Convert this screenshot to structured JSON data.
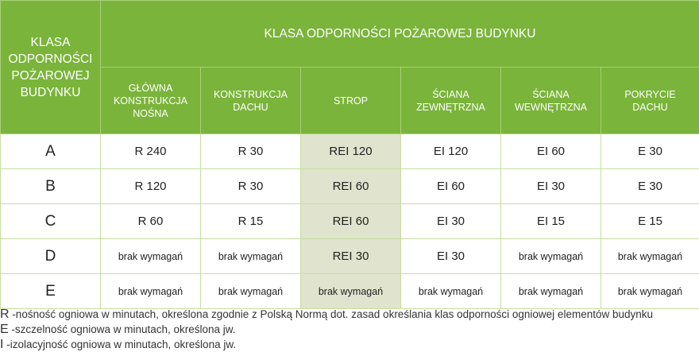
{
  "table": {
    "corner_header": [
      "KLASA",
      "ODPORNOŚCI",
      "POŻAROWEJ",
      "BUDYNKU"
    ],
    "group_header": "KLASA ODPORNOŚCI POŻAROWEJ BUDYNKU",
    "columns": [
      [
        "GŁÓWNA",
        "KONSTRUKCJA",
        "NOŚNA"
      ],
      [
        "KONSTRUKCJA",
        "DACHU"
      ],
      [
        "STROP"
      ],
      [
        "ŚCIANA",
        "ZEWNĘTRZNA"
      ],
      [
        "ŚCIANA",
        "WEWNĘTRZNA"
      ],
      [
        "POKRYCIE",
        "DACHU"
      ]
    ],
    "rows": [
      {
        "class": "A",
        "cells": [
          "R 240",
          "R 30",
          "REI 120",
          "EI 120",
          "EI 60",
          "E 30"
        ]
      },
      {
        "class": "B",
        "cells": [
          "R 120",
          "R 30",
          "REI 60",
          "EI 60",
          "EI 30",
          "E 30"
        ]
      },
      {
        "class": "C",
        "cells": [
          "R 60",
          "R 15",
          "REI 60",
          "EI 30",
          "EI 15",
          "E 15"
        ]
      },
      {
        "class": "D",
        "cells": [
          "brak wymagań",
          "brak wymagań",
          "REI 30",
          "EI 30",
          "brak wymagań",
          "brak wymagań"
        ]
      },
      {
        "class": "E",
        "cells": [
          "brak wymagań",
          "brak wymagań",
          "brak wymagań",
          "brak wymagań",
          "brak wymagań",
          "brak wymagań"
        ]
      }
    ],
    "highlighted_column": "STROP"
  },
  "legend": [
    {
      "key": "R",
      "text": " -nośność ogniowa w minutach, określona zgodnie z Polską Normą dot. zasad określania klas odporności ogniowej elementów budynku"
    },
    {
      "key": "E",
      "text": " -szczelność ogniowa w minutach, określona jw."
    },
    {
      "key": "I",
      "text": " -izolacyjność ogniowa w minutach, określona jw."
    }
  ],
  "colors": {
    "header_green": "#7ab43a",
    "highlight": "#e0e3cd",
    "grid": "#c6de9f"
  }
}
